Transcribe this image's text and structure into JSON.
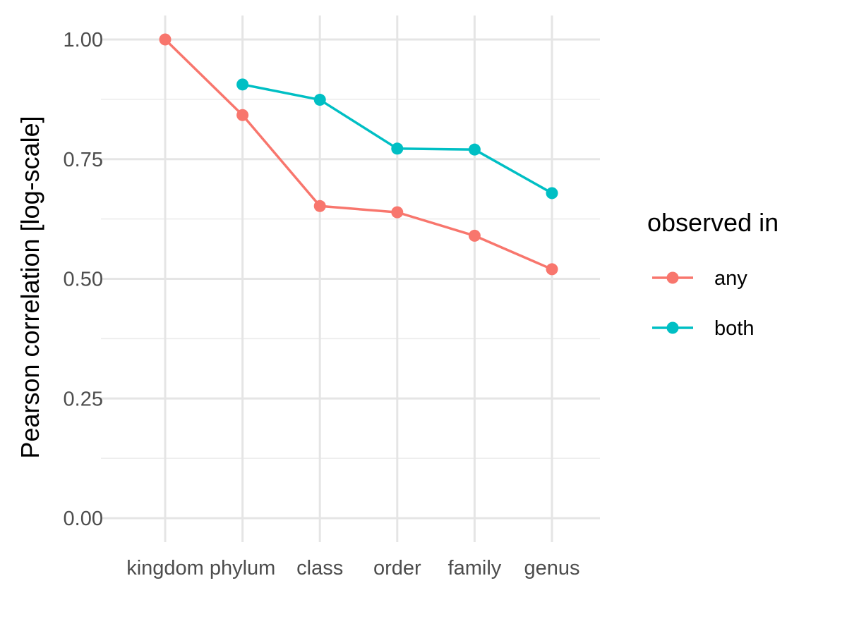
{
  "chart_data": {
    "type": "line",
    "categories": [
      "kingdom",
      "phylum",
      "class",
      "order",
      "family",
      "genus"
    ],
    "ylabel": "Pearson correlation [log-scale]",
    "xlabel": "",
    "ylim": [
      -0.05,
      1.05
    ],
    "y_ticks": [
      0.0,
      0.25,
      0.5,
      0.75,
      1.0
    ],
    "y_tick_labels": [
      "0.00",
      "0.25",
      "0.50",
      "0.75",
      "1.00"
    ],
    "grid": true,
    "legend": {
      "title": "observed in",
      "placement": "right"
    },
    "series": [
      {
        "name": "any",
        "color": "#F8766D",
        "values": [
          1.0,
          0.842,
          0.652,
          0.639,
          0.59,
          0.52
        ]
      },
      {
        "name": "both",
        "color": "#00BFC4",
        "values": [
          null,
          0.906,
          0.874,
          0.772,
          0.77,
          0.679
        ]
      }
    ]
  }
}
